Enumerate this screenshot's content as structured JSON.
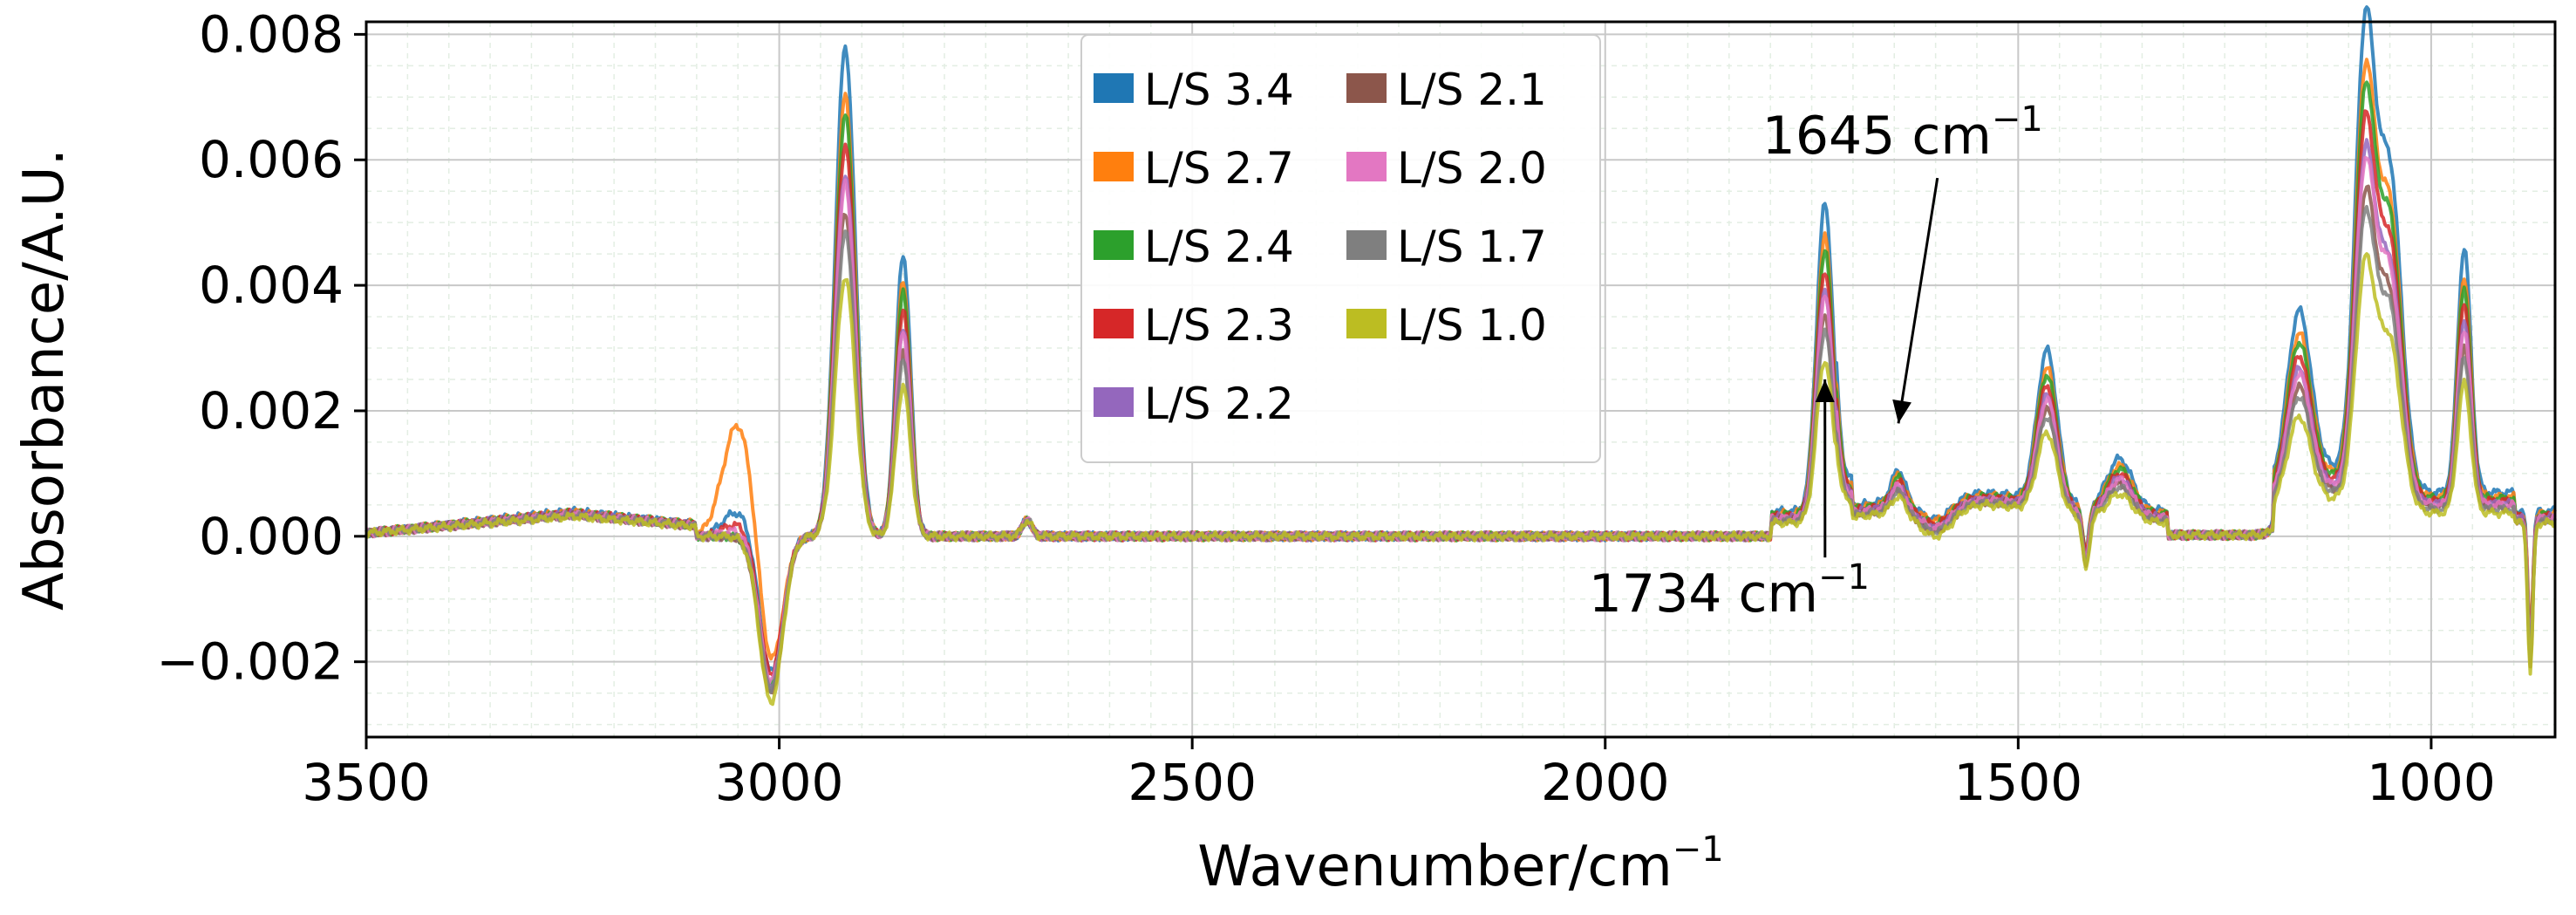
{
  "chart_data": {
    "type": "line",
    "title": "",
    "xlabel": "Wavenumber/cm",
    "xlabel_sup": "−1",
    "ylabel": "Absorbance/A.U.",
    "xlim": [
      3500,
      850
    ],
    "ylim": [
      -0.0032,
      0.0082
    ],
    "x_ticks": [
      3500,
      3000,
      2500,
      2000,
      1500,
      1000
    ],
    "x_tick_labels": [
      "3500",
      "3000",
      "2500",
      "2000",
      "1500",
      "1000"
    ],
    "y_ticks": [
      -0.002,
      0.0,
      0.002,
      0.004,
      0.006,
      0.008
    ],
    "y_tick_labels": [
      "−0.002",
      "0.000",
      "0.002",
      "0.004",
      "0.006",
      "0.008"
    ],
    "grid": true,
    "legend_position": "upper-center",
    "series": [
      {
        "name": "L/S 3.4",
        "color": "#1f77b4",
        "scale": 1.0,
        "dip": 1.0,
        "shoulder": 0.0004
      },
      {
        "name": "L/S 2.7",
        "color": "#ff7f0e",
        "scale": 0.9,
        "dip": 0.95,
        "shoulder": 0.0018
      },
      {
        "name": "L/S 2.4",
        "color": "#2ca02c",
        "scale": 0.86,
        "dip": 1.05,
        "shoulder": 0.0
      },
      {
        "name": "L/S 2.3",
        "color": "#d62728",
        "scale": 0.8,
        "dip": 1.0,
        "shoulder": 0.0002
      },
      {
        "name": "L/S 2.2",
        "color": "#9467bd",
        "scale": 0.74,
        "dip": 1.1,
        "shoulder": 0.0
      },
      {
        "name": "L/S 2.1",
        "color": "#8c564b",
        "scale": 0.66,
        "dip": 1.15,
        "shoulder": 0.0
      },
      {
        "name": "L/S 2.0",
        "color": "#e377c2",
        "scale": 0.72,
        "dip": 1.05,
        "shoulder": 0.0001
      },
      {
        "name": "L/S 1.7",
        "color": "#7f7f7f",
        "scale": 0.62,
        "dip": 1.1,
        "shoulder": 0.0
      },
      {
        "name": "L/S 1.0",
        "color": "#bcbd22",
        "scale": 0.53,
        "dip": 1.2,
        "shoulder": 0.0
      }
    ],
    "peaks": [
      {
        "center": 2920,
        "width": 12,
        "height": 0.0078
      },
      {
        "center": 2850,
        "width": 9,
        "height": 0.0045
      },
      {
        "center": 1734,
        "width": 10,
        "height": 0.0049
      },
      {
        "center": 1465,
        "width": 12,
        "height": 0.0024
      },
      {
        "center": 1377,
        "width": 15,
        "height": 0.0008
      },
      {
        "center": 1160,
        "width": 14,
        "height": 0.0026
      },
      {
        "center": 1080,
        "width": 12,
        "height": 0.007
      },
      {
        "center": 1050,
        "width": 14,
        "height": 0.005
      },
      {
        "center": 960,
        "width": 8,
        "height": 0.0039
      },
      {
        "center": 1645,
        "width": 8,
        "height": 0.0005
      }
    ],
    "dips": [
      {
        "center": 3010,
        "width": 14,
        "depth": 0.0022
      },
      {
        "center": 1600,
        "width": 20,
        "depth": 0.0004
      },
      {
        "center": 1418,
        "width": 4,
        "depth": 0.0007
      },
      {
        "center": 880,
        "width": 3,
        "depth": 0.002
      }
    ],
    "annotations": [
      {
        "text": "1645 cm",
        "sup": "−1",
        "text_at": [
          1640,
          0.0061
        ],
        "arrow_to": [
          1645,
          0.0018
        ]
      },
      {
        "text": "1734 cm",
        "sup": "−1",
        "text_at": [
          1850,
          -0.0012
        ],
        "arrow_to": [
          1734,
          0.0025
        ]
      }
    ]
  }
}
